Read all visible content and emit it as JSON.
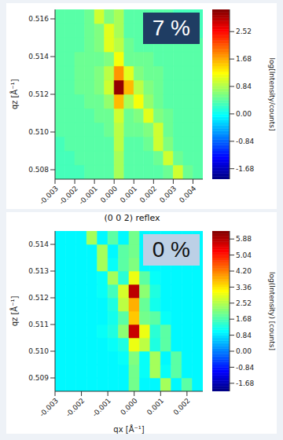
{
  "chart_data": [
    {
      "type": "heatmap",
      "annotation": "7 %",
      "ylabel": "qz [Å⁻¹]",
      "xlim": [
        -0.003,
        0.0045
      ],
      "ylim": [
        0.5075,
        0.5165
      ],
      "xticks": [
        -0.003,
        -0.002,
        -0.001,
        {
          "value": 0,
          "label": "0.000"
        },
        0.001,
        0.002,
        0.003,
        0.004
      ],
      "yticks": [
        0.508,
        {
          "value": 0.51,
          "label": "0.510"
        },
        0.512,
        0.514,
        0.516
      ],
      "x_edges": [
        -0.003,
        -0.0025,
        -0.002,
        -0.0015,
        -0.001,
        -0.0005,
        0,
        0.0005,
        0.001,
        0.0015,
        0.002,
        0.0025,
        0.003,
        0.0035,
        0.004,
        0.0045
      ],
      "y_edges": [
        0.5075,
        0.50825,
        0.509,
        0.50975,
        0.5105,
        0.51125,
        0.512,
        0.51275,
        0.5135,
        0.51425,
        0.515,
        0.51575,
        0.5165
      ],
      "cells": [
        [
          0.3,
          0.3,
          0.3,
          0.4,
          0.4,
          0.4,
          0.8,
          0.4,
          0.4,
          0.4,
          0.4,
          0.5,
          1.0,
          0.5,
          0.4
        ],
        [
          0.3,
          0.3,
          0.4,
          0.4,
          0.4,
          0.4,
          0.8,
          0.4,
          0.4,
          0.4,
          0.5,
          1.0,
          0.5,
          0.4,
          0.4
        ],
        [
          0.3,
          0.4,
          0.4,
          0.4,
          0.4,
          0.4,
          0.9,
          0.4,
          0.4,
          0.5,
          1.0,
          0.6,
          0.4,
          0.4,
          0.4
        ],
        [
          0.4,
          0.4,
          0.4,
          0.4,
          0.4,
          0.5,
          0.9,
          0.5,
          0.5,
          0.6,
          1.0,
          0.5,
          0.4,
          0.4,
          0.4
        ],
        [
          0.4,
          0.4,
          0.4,
          0.4,
          0.5,
          0.5,
          1.0,
          0.5,
          0.6,
          1.1,
          0.6,
          0.5,
          0.4,
          0.4,
          0.4
        ],
        [
          0.4,
          0.4,
          0.4,
          0.5,
          0.5,
          0.7,
          1.6,
          0.8,
          1.2,
          0.7,
          0.5,
          0.4,
          0.4,
          0.4,
          0.4
        ],
        [
          0.4,
          0.4,
          0.5,
          0.5,
          0.6,
          1.0,
          3.1,
          1.6,
          0.9,
          0.6,
          0.5,
          0.4,
          0.4,
          0.4,
          0.4
        ],
        [
          0.4,
          0.4,
          0.5,
          0.5,
          0.6,
          0.9,
          1.8,
          1.1,
          0.6,
          0.5,
          0.5,
          0.4,
          0.4,
          0.4,
          0.4
        ],
        [
          0.4,
          0.4,
          0.5,
          0.5,
          0.5,
          0.6,
          1.2,
          0.5,
          0.5,
          0.5,
          0.4,
          0.4,
          0.4,
          0.4,
          0.4
        ],
        [
          0.4,
          0.4,
          0.4,
          0.5,
          0.6,
          1.1,
          0.9,
          0.5,
          0.4,
          0.4,
          0.4,
          0.4,
          0.4,
          0.4,
          0.4
        ],
        [
          0.4,
          0.4,
          0.4,
          0.5,
          0.6,
          1.1,
          0.8,
          0.4,
          0.4,
          0.4,
          0.4,
          0.4,
          0.4,
          0.4,
          0.3
        ],
        [
          0.4,
          0.4,
          0.4,
          0.5,
          1.0,
          0.6,
          0.8,
          0.4,
          0.4,
          0.4,
          0.4,
          0.4,
          0.3,
          0.3,
          0.3
        ]
      ],
      "colorbar": {
        "label": "log[Intensity/counts]",
        "lim": [
          -2.0,
          3.2
        ],
        "ticks": [
          -1.68,
          -0.84,
          {
            "value": 0,
            "label": "0.00"
          },
          0.84,
          1.68,
          2.52
        ]
      }
    },
    {
      "type": "heatmap",
      "title": "(0 0 2) reflex",
      "annotation": "0 %",
      "xlabel": "qx [Å⁻¹]",
      "ylabel": "qz [Å⁻¹]",
      "xlim": [
        -0.003,
        0.0026
      ],
      "ylim": [
        0.5085,
        0.5145
      ],
      "xticks": [
        -0.003,
        -0.002,
        -0.001,
        {
          "value": 0,
          "label": "0.000"
        },
        0.001,
        0.002
      ],
      "yticks": [
        0.509,
        {
          "value": 0.51,
          "label": "0.510"
        },
        0.511,
        0.512,
        0.513,
        0.514
      ],
      "x_edges": [
        -0.003,
        -0.0026,
        -0.0022,
        -0.0018,
        -0.0014,
        -0.001,
        -0.0006,
        -0.0002,
        0.0002,
        0.0006,
        0.001,
        0.0014,
        0.0018,
        0.0022,
        0.0026
      ],
      "y_edges": [
        0.5085,
        0.509,
        0.5095,
        0.51,
        0.5105,
        0.511,
        0.5115,
        0.512,
        0.5125,
        0.513,
        0.5135,
        0.514,
        0.5145
      ],
      "cells": [
        [
          1.0,
          1.0,
          1.0,
          1.0,
          1.0,
          1.0,
          1.0,
          2.0,
          1.0,
          1.0,
          2.4,
          1.0,
          1.8,
          1.0
        ],
        [
          1.0,
          1.0,
          1.0,
          1.0,
          1.0,
          1.0,
          1.0,
          2.0,
          1.1,
          2.4,
          1.1,
          1.8,
          1.0,
          1.0
        ],
        [
          1.0,
          1.0,
          1.0,
          1.0,
          1.0,
          1.0,
          1.1,
          2.1,
          1.1,
          2.4,
          1.0,
          1.8,
          1.0,
          1.0
        ],
        [
          1.0,
          1.0,
          1.0,
          1.0,
          1.0,
          1.1,
          1.3,
          3.0,
          2.6,
          1.3,
          1.8,
          1.0,
          1.0,
          1.0
        ],
        [
          1.0,
          1.0,
          1.0,
          1.0,
          1.1,
          1.3,
          2.2,
          5.7,
          3.0,
          1.4,
          1.8,
          1.0,
          1.0,
          1.0
        ],
        [
          1.0,
          1.0,
          1.0,
          1.0,
          1.0,
          1.2,
          1.8,
          3.6,
          2.0,
          1.8,
          1.1,
          1.0,
          1.0,
          1.0
        ],
        [
          1.0,
          1.0,
          1.0,
          1.0,
          1.0,
          1.3,
          2.6,
          3.8,
          1.9,
          1.2,
          1.0,
          1.0,
          1.0,
          1.0
        ],
        [
          1.0,
          1.0,
          1.0,
          1.0,
          1.1,
          1.6,
          2.8,
          5.8,
          2.2,
          1.3,
          1.0,
          1.0,
          1.0,
          1.0
        ],
        [
          1.0,
          1.0,
          1.0,
          1.0,
          1.1,
          2.4,
          1.4,
          3.0,
          1.8,
          1.1,
          1.0,
          1.0,
          1.0,
          1.0
        ],
        [
          1.0,
          1.0,
          1.0,
          1.0,
          2.4,
          1.1,
          1.8,
          2.1,
          1.0,
          1.0,
          1.0,
          1.0,
          1.0,
          1.0
        ],
        [
          1.0,
          1.0,
          1.0,
          1.0,
          2.4,
          1.0,
          1.8,
          2.0,
          1.0,
          1.0,
          1.0,
          1.0,
          1.0,
          1.0
        ],
        [
          1.0,
          1.0,
          1.0,
          2.4,
          1.0,
          1.8,
          1.0,
          2.0,
          1.0,
          1.0,
          1.0,
          1.0,
          1.0,
          1.0
        ]
      ],
      "colorbar": {
        "label": "log(Intensity) [counts]",
        "lim": [
          -2.1,
          6.3
        ],
        "ticks": [
          -1.68,
          -0.84,
          {
            "value": 0,
            "label": "0.00"
          },
          0.84,
          1.68,
          2.52,
          3.36,
          {
            "value": 4.2,
            "label": "4.20"
          },
          5.04,
          5.88
        ]
      }
    }
  ]
}
